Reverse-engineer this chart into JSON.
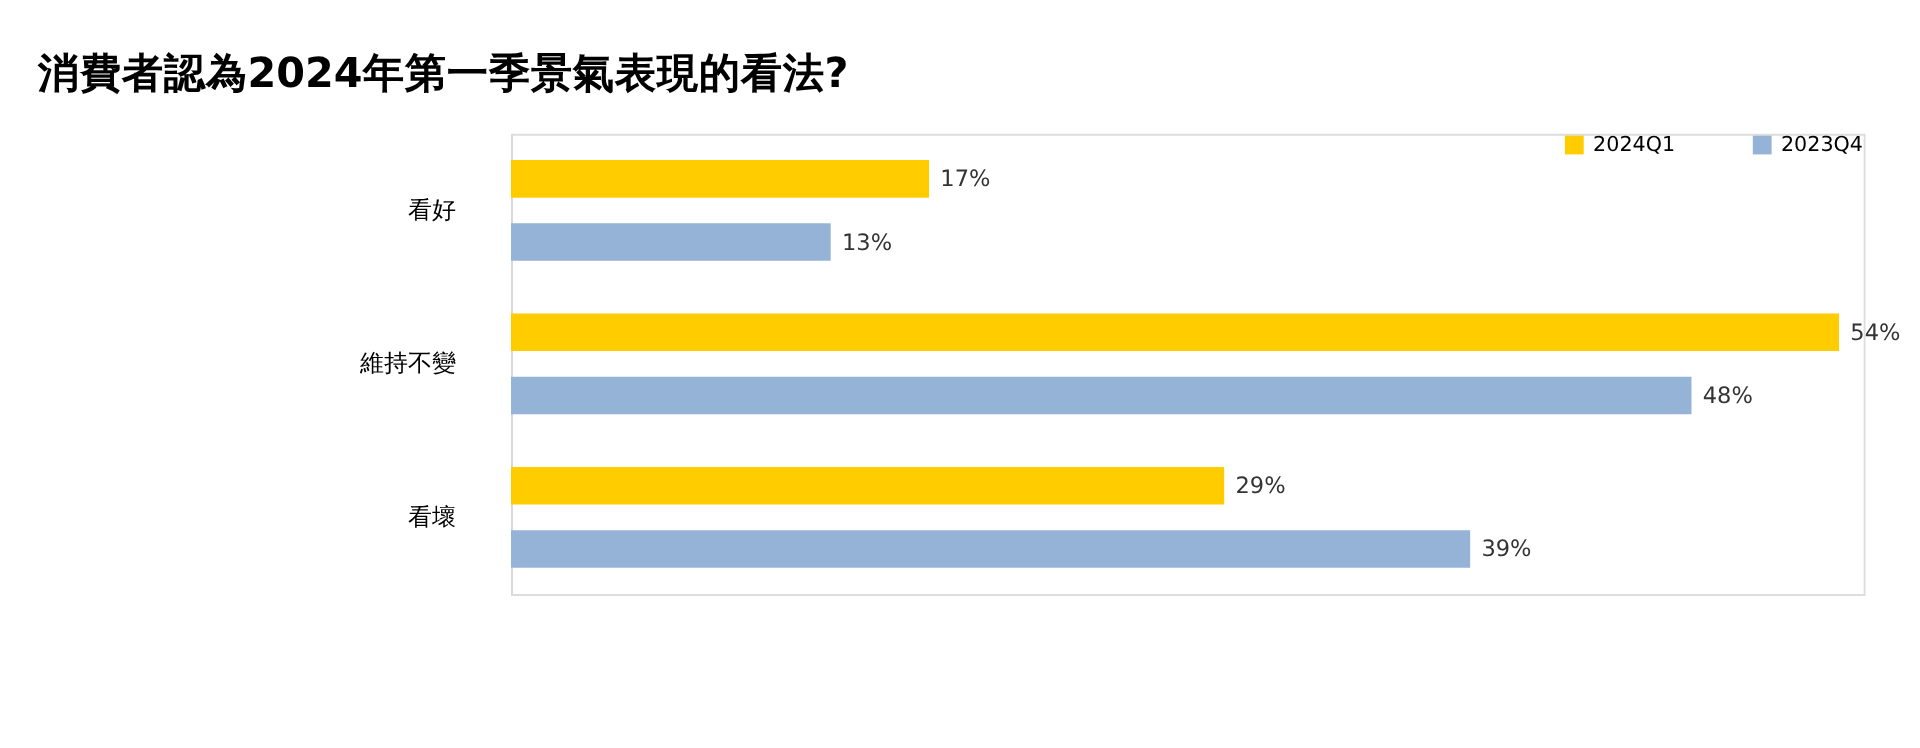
{
  "chart_data": {
    "type": "bar",
    "orientation": "horizontal",
    "title": "消費者認為2024年第一季景氣表現的看法?",
    "categories": [
      "看好",
      "維持不變",
      "看壞"
    ],
    "series": [
      {
        "name": "2024Q1",
        "color": "#ffcc00",
        "values": [
          17,
          54,
          29
        ],
        "value_labels": [
          "17%",
          "54%",
          "29%"
        ]
      },
      {
        "name": "2023Q4",
        "color": "#95b3d7",
        "values": [
          13,
          48,
          39
        ],
        "value_labels": [
          "13%",
          "48%",
          "39%"
        ]
      }
    ],
    "legend": "top right"
  }
}
